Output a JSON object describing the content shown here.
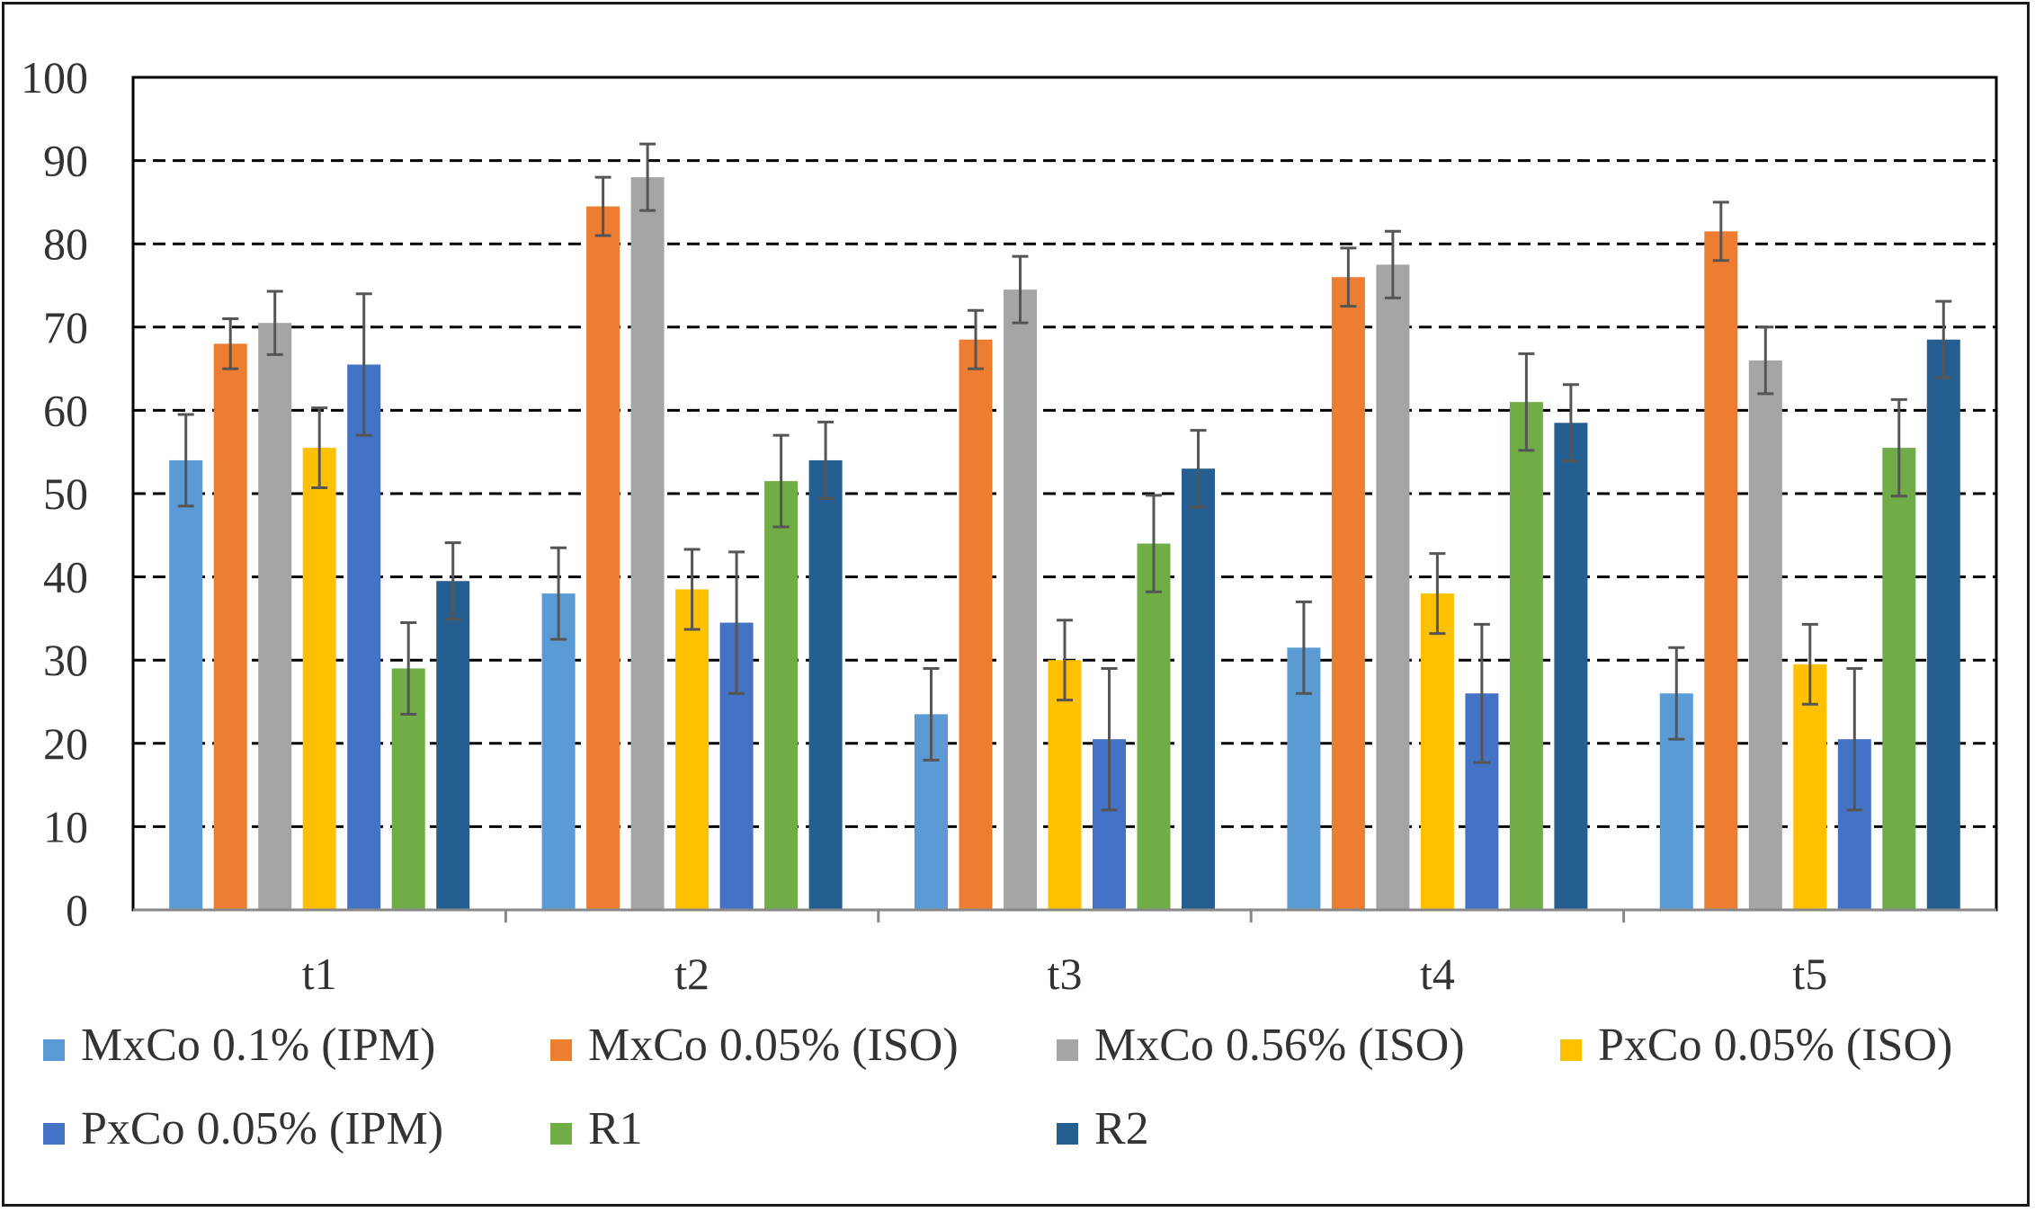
{
  "chart_data": {
    "type": "bar",
    "categories": [
      "t1",
      "t2",
      "t3",
      "t4",
      "t5"
    ],
    "ylim": [
      0,
      100
    ],
    "yticks": [
      0,
      10,
      20,
      30,
      40,
      50,
      60,
      70,
      80,
      90,
      100
    ],
    "grid": "dashed horizontal",
    "legend_position": "bottom",
    "series": [
      {
        "name": "MxCo 0.1% (IPM)",
        "color": "#5b9bd5",
        "values": [
          54,
          38,
          23.5,
          31.5,
          26
        ],
        "errors": [
          5.5,
          5.5,
          5.5,
          5.5,
          5.5
        ]
      },
      {
        "name": "MxCo 0.05% (ISO)",
        "color": "#ed7d31",
        "values": [
          68,
          84.5,
          68.5,
          76,
          81.5
        ],
        "errors": [
          3,
          3.5,
          3.5,
          3.5,
          3.5
        ]
      },
      {
        "name": "MxCo 0.56% (ISO)",
        "color": "#a5a5a5",
        "values": [
          70.5,
          88,
          74.5,
          77.5,
          66
        ],
        "errors": [
          3.8,
          4,
          4,
          4,
          4
        ]
      },
      {
        "name": "PxCo 0.05% (ISO)",
        "color": "#ffc000",
        "values": [
          55.5,
          38.5,
          30,
          38,
          29.5
        ],
        "errors": [
          4.8,
          4.8,
          4.8,
          4.8,
          4.8
        ]
      },
      {
        "name": "PxCo 0.05% (IPM)",
        "color": "#4472c4",
        "values": [
          65.5,
          34.5,
          20.5,
          26,
          20.5
        ],
        "errors": [
          8.5,
          8.5,
          8.5,
          8.3,
          8.5
        ]
      },
      {
        "name": "R1",
        "color": "#70ad47",
        "values": [
          29,
          51.5,
          44,
          61,
          55.5
        ],
        "errors": [
          5.5,
          5.5,
          5.8,
          5.8,
          5.8
        ]
      },
      {
        "name": "R2",
        "color": "#255e91",
        "values": [
          39.5,
          54,
          53,
          58.5,
          68.5
        ],
        "errors": [
          4.6,
          4.6,
          4.6,
          4.6,
          4.6
        ]
      }
    ]
  }
}
